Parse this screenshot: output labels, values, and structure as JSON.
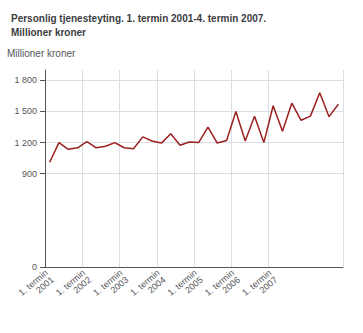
{
  "chart_data": {
    "type": "line",
    "title": "Personlig tjenesteyting. 1. termin 2001-4. termin 2007.\nMillioner kroner",
    "ylabel": "Millioner kroner",
    "categories": [
      "1. termin\n2001",
      null,
      null,
      null,
      "1. termin\n2002",
      null,
      null,
      null,
      "1. termin\n2003",
      null,
      null,
      null,
      "1. termin\n2004",
      null,
      null,
      null,
      "1. termin\n2005",
      null,
      null,
      null,
      "1. termin\n2006",
      null,
      null,
      null,
      "1. termin\n2007",
      null,
      null,
      null,
      null,
      null,
      null,
      null
    ],
    "values": [
      1010,
      1200,
      1135,
      1150,
      1210,
      1150,
      1165,
      1200,
      1150,
      1140,
      1255,
      1215,
      1195,
      1285,
      1175,
      1205,
      1200,
      1350,
      1195,
      1220,
      1500,
      1215,
      1455,
      1200,
      1555,
      1310,
      1580,
      1415,
      1455,
      1680,
      1450,
      1570
    ],
    "color": "#9b2020",
    "ylim": [
      0,
      1900
    ],
    "yticks": [
      0,
      900,
      {
        "value": 1200,
        "label": "1 200"
      },
      {
        "value": 1500,
        "label": "1 500"
      },
      {
        "value": 1800,
        "label": "1 800"
      }
    ],
    "grid": true
  }
}
